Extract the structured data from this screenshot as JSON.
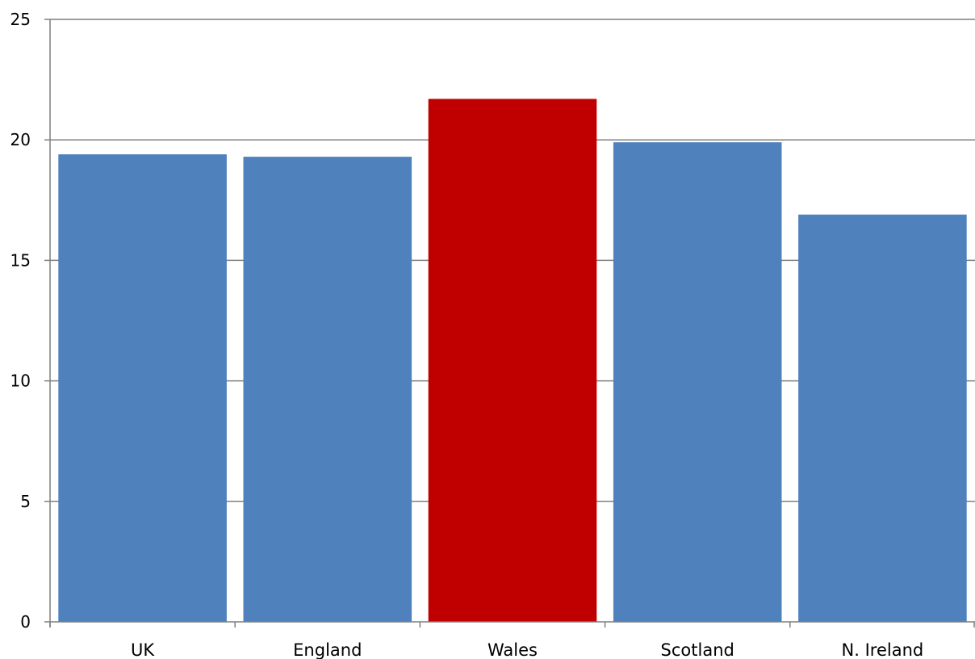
{
  "chart_data": {
    "type": "bar",
    "categories": [
      "UK",
      "England",
      "Wales",
      "Scotland",
      "N. Ireland"
    ],
    "values": [
      19.4,
      19.3,
      21.7,
      19.9,
      16.9
    ],
    "highlight_index": 2,
    "colors": {
      "default": "#4f81bd",
      "highlight": "#c00000",
      "grid": "#7f7f7f",
      "axis": "#7f7f7f"
    },
    "title": "",
    "xlabel": "",
    "ylabel": "",
    "ylim": [
      0,
      25
    ],
    "yticks": [
      0,
      5,
      10,
      15,
      20,
      25
    ],
    "grid": true,
    "legend": "none"
  }
}
